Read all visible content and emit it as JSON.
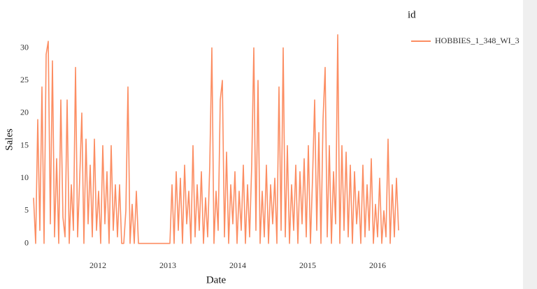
{
  "chart_data": {
    "type": "line",
    "x_label": "Date",
    "y_label": "Sales",
    "legend_title": "id",
    "xlim": [
      2011.06,
      2016.32
    ],
    "xticks": [
      2012,
      2013,
      2014,
      2015,
      2016
    ],
    "ylim": [
      -1,
      33
    ],
    "yticks": [
      0,
      5,
      10,
      15,
      20,
      25,
      30
    ],
    "grid": false,
    "legend": "right",
    "x": [
      2011.08,
      2011.11,
      2011.14,
      2011.17,
      2011.2,
      2011.23,
      2011.26,
      2011.29,
      2011.32,
      2011.35,
      2011.38,
      2011.41,
      2011.44,
      2011.47,
      2011.5,
      2011.53,
      2011.56,
      2011.59,
      2011.62,
      2011.65,
      2011.68,
      2011.71,
      2011.74,
      2011.77,
      2011.8,
      2011.83,
      2011.86,
      2011.89,
      2011.92,
      2011.95,
      2011.98,
      2012.01,
      2012.04,
      2012.07,
      2012.1,
      2012.13,
      2012.16,
      2012.19,
      2012.22,
      2012.25,
      2012.28,
      2012.31,
      2012.34,
      2012.37,
      2012.4,
      2012.43,
      2012.46,
      2012.49,
      2012.52,
      2012.55,
      2012.58,
      2012.61,
      2012.64,
      2012.67,
      2012.7,
      2012.73,
      2012.76,
      2012.79,
      2012.82,
      2012.85,
      2012.88,
      2012.91,
      2012.94,
      2012.97,
      2013.0,
      2013.03,
      2013.06,
      2013.09,
      2013.12,
      2013.15,
      2013.18,
      2013.21,
      2013.24,
      2013.27,
      2013.3,
      2013.33,
      2013.36,
      2013.39,
      2013.42,
      2013.45,
      2013.48,
      2013.51,
      2013.54,
      2013.57,
      2013.6,
      2013.63,
      2013.66,
      2013.69,
      2013.72,
      2013.75,
      2013.78,
      2013.81,
      2013.84,
      2013.87,
      2013.9,
      2013.93,
      2013.96,
      2013.99,
      2014.02,
      2014.05,
      2014.08,
      2014.11,
      2014.14,
      2014.17,
      2014.2,
      2014.23,
      2014.26,
      2014.29,
      2014.32,
      2014.35,
      2014.38,
      2014.41,
      2014.44,
      2014.47,
      2014.5,
      2014.53,
      2014.56,
      2014.59,
      2014.62,
      2014.65,
      2014.68,
      2014.71,
      2014.74,
      2014.77,
      2014.8,
      2014.83,
      2014.86,
      2014.89,
      2014.92,
      2014.95,
      2014.98,
      2015.01,
      2015.04,
      2015.07,
      2015.1,
      2015.13,
      2015.16,
      2015.19,
      2015.22,
      2015.25,
      2015.28,
      2015.31,
      2015.34,
      2015.37,
      2015.4,
      2015.43,
      2015.46,
      2015.49,
      2015.52,
      2015.55,
      2015.58,
      2015.61,
      2015.64,
      2015.67,
      2015.7,
      2015.73,
      2015.76,
      2015.79,
      2015.82,
      2015.85,
      2015.88,
      2015.91,
      2015.94,
      2015.97,
      2016.0,
      2016.03,
      2016.06,
      2016.09,
      2016.12,
      2016.15,
      2016.18,
      2016.21,
      2016.24,
      2016.27,
      2016.3
    ],
    "series": [
      {
        "name": "HOBBIES_1_348_WI_3",
        "color": "#fc8d62",
        "values": [
          7,
          0,
          19,
          2,
          24,
          0,
          29,
          31,
          3,
          28,
          1,
          13,
          0,
          22,
          4,
          1,
          22,
          0,
          9,
          2,
          27,
          1,
          10,
          20,
          0,
          16,
          3,
          12,
          1,
          16,
          2,
          8,
          0,
          15,
          3,
          11,
          0,
          15,
          2,
          9,
          1,
          9,
          0,
          0,
          5,
          24,
          0,
          6,
          0,
          8,
          0,
          0,
          0,
          0,
          0,
          0,
          0,
          0,
          0,
          0,
          0,
          0,
          0,
          0,
          0,
          0,
          9,
          0,
          11,
          2,
          10,
          0,
          12,
          3,
          8,
          0,
          15,
          1,
          9,
          2,
          11,
          0,
          7,
          1,
          12,
          30,
          0,
          8,
          2,
          22,
          25,
          1,
          14,
          0,
          9,
          3,
          11,
          0,
          8,
          2,
          12,
          0,
          9,
          1,
          12,
          30,
          2,
          25,
          0,
          8,
          1,
          12,
          0,
          9,
          3,
          10,
          0,
          24,
          2,
          30,
          1,
          15,
          0,
          9,
          2,
          12,
          0,
          11,
          3,
          13,
          1,
          15,
          0,
          10,
          22,
          2,
          17,
          0,
          19,
          27,
          1,
          15,
          0,
          11,
          3,
          32,
          0,
          15,
          2,
          14,
          1,
          12,
          0,
          11,
          3,
          8,
          0,
          12,
          1,
          9,
          2,
          13,
          0,
          6,
          1,
          10,
          0,
          5,
          1,
          16,
          0,
          9,
          1,
          10,
          2
        ]
      }
    ]
  }
}
